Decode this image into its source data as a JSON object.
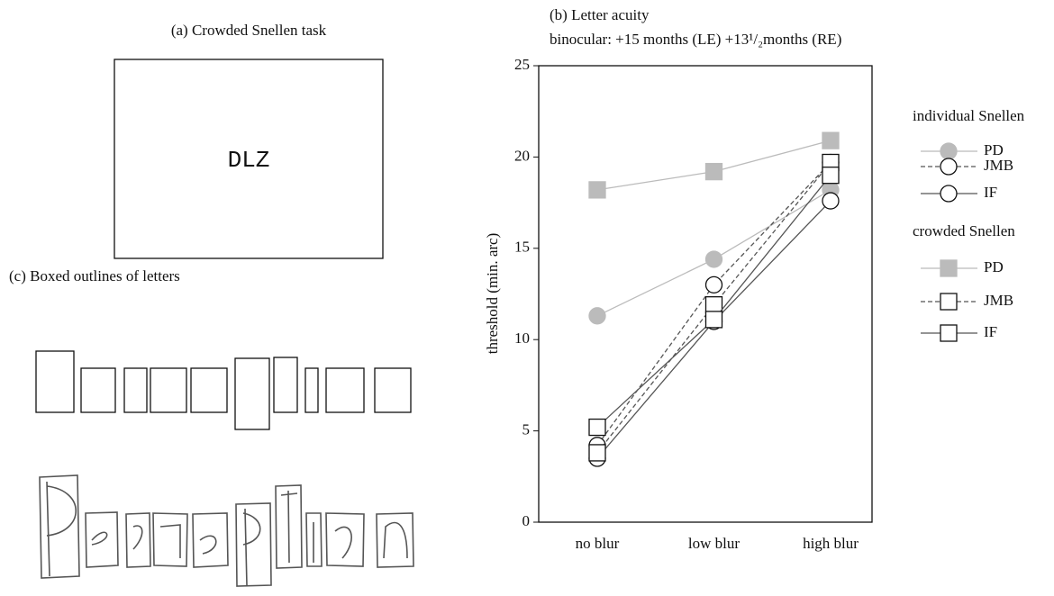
{
  "task_panel": {
    "title": "(a) Crowded Snellen task",
    "stimulus": "DLZ"
  },
  "outline_panel": {
    "title": "(c) Boxed outlines of letters"
  },
  "chart_data": {
    "type": "line",
    "title": "(b) Letter acuity",
    "subtitle": "binocular: +15 months (LE) +13¹/₂months (RE)",
    "y_label": "threshold (min. arc)",
    "categories": [
      "no blur",
      "low blur",
      "high blur"
    ],
    "ylim": [
      0,
      25
    ],
    "yticks": [
      0,
      5,
      10,
      15,
      20,
      25
    ],
    "series_groups": [
      {
        "name": "individual Snellen",
        "series": [
          {
            "name": "PD",
            "color": "#bbbbbb",
            "marker": "circle",
            "filled": true,
            "dashed": false,
            "values": [
              11.3,
              14.4,
              18.2
            ]
          },
          {
            "name": "JMB",
            "color": "#555555",
            "marker": "circle",
            "filled": false,
            "dashed": true,
            "values": [
              4.2,
              13.0,
              19.7
            ]
          },
          {
            "name": "IF",
            "color": "#555555",
            "marker": "circle",
            "filled": false,
            "dashed": false,
            "values": [
              3.5,
              11.0,
              17.6
            ]
          }
        ]
      },
      {
        "name": "crowded Snellen",
        "series": [
          {
            "name": "PD",
            "color": "#bbbbbb",
            "marker": "square",
            "filled": true,
            "dashed": false,
            "values": [
              18.2,
              19.2,
              20.9
            ]
          },
          {
            "name": "JMB",
            "color": "#555555",
            "marker": "square",
            "filled": false,
            "dashed": true,
            "values": [
              3.8,
              11.9,
              19.7
            ]
          },
          {
            "name": "IF",
            "color": "#555555",
            "marker": "square",
            "filled": false,
            "dashed": false,
            "values": [
              5.2,
              11.1,
              19.0
            ]
          }
        ]
      }
    ]
  }
}
